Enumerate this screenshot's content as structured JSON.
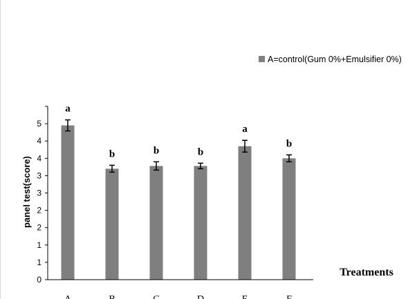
{
  "chart_data": {
    "type": "bar",
    "categories": [
      "A",
      "B",
      "C",
      "D",
      "E",
      "F"
    ],
    "values": [
      4.45,
      3.2,
      3.28,
      3.28,
      3.85,
      3.5
    ],
    "errors": [
      0.16,
      0.1,
      0.12,
      0.08,
      0.17,
      0.1
    ],
    "significance": [
      "a",
      "b",
      "b",
      "b",
      "a",
      "b"
    ],
    "y_tick_labels": [
      "0",
      "1",
      "1",
      "2",
      "2",
      "3",
      "3",
      "4",
      "4",
      "5"
    ],
    "title": "",
    "xlabel": "Treatments",
    "ylabel": "panel test(score)",
    "ylim": [
      0,
      5
    ],
    "bar_color": "#7f7f7f",
    "legend": {
      "label": "A=control(Gum 0%+Emulsifier 0%)",
      "position": "top-right"
    },
    "grid": false
  }
}
